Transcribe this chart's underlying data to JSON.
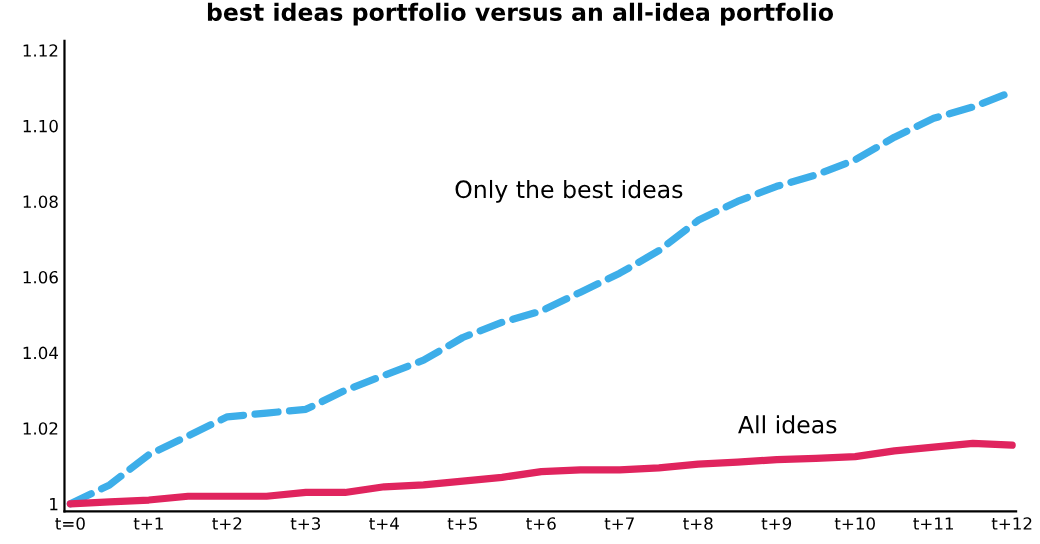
{
  "chart_data": {
    "type": "line",
    "title": "best ideas portfolio versus an all-idea portfolio",
    "categories": [
      "t=0",
      null,
      "t+1",
      null,
      "t+2",
      null,
      "t+3",
      null,
      "t+4",
      null,
      "t+5",
      null,
      "t+6",
      null,
      "t+7",
      null,
      "t+8",
      null,
      "t+9",
      null,
      "t+10",
      null,
      "t+11",
      null,
      "t+12"
    ],
    "series": [
      {
        "name": "Only the best ideas",
        "color": "#3daee9",
        "line_style": "dashed",
        "values": [
          1.0,
          1.005,
          1.013,
          1.018,
          1.023,
          1.024,
          1.025,
          1.03,
          1.034,
          1.038,
          1.044,
          1.048,
          1.051,
          1.056,
          1.061,
          1.067,
          1.075,
          1.08,
          1.084,
          1.087,
          1.091,
          1.097,
          1.102,
          1.105,
          1.109
        ]
      },
      {
        "name": "All ideas",
        "color": "#e0245e",
        "line_style": "solid",
        "values": [
          1.0,
          1.0005,
          1.001,
          1.002,
          1.002,
          1.002,
          1.003,
          1.003,
          1.0045,
          1.005,
          1.006,
          1.007,
          1.0085,
          1.009,
          1.009,
          1.0095,
          1.0105,
          1.011,
          1.0117,
          1.012,
          1.0125,
          1.014,
          1.015,
          1.016,
          1.0155
        ]
      }
    ],
    "ylim": [
      0.998,
      1.1225
    ],
    "yticks": [
      {
        "value": 1,
        "label": "1"
      },
      1.02,
      1.04,
      1.06,
      1.08,
      {
        "value": 1.1,
        "label": "1.10"
      },
      1.12
    ],
    "grid": false,
    "legend": false,
    "marker": "none"
  }
}
